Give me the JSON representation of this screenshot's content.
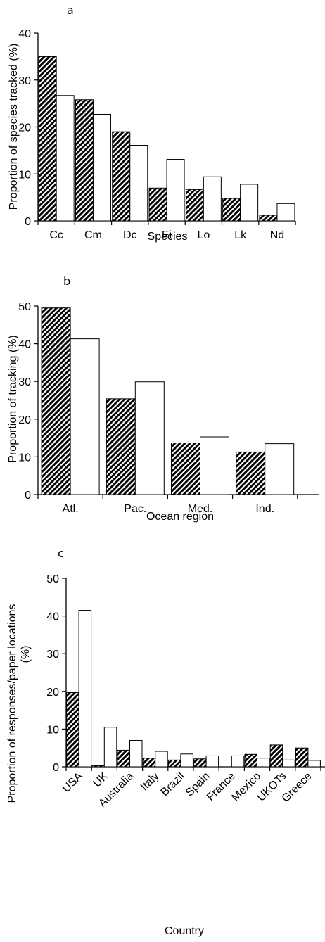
{
  "colors": {
    "ink": "#000000",
    "paper": "#ffffff"
  },
  "chart_data": [
    {
      "type": "bar",
      "panel_label": "a",
      "categories": [
        "Cc",
        "Cm",
        "Dc",
        "Ei",
        "Lo",
        "Lk",
        "Nd"
      ],
      "series": [
        {
          "pattern": "hatched",
          "values": [
            35,
            25.8,
            19,
            7,
            6.7,
            4.8,
            1.2
          ]
        },
        {
          "pattern": "open",
          "values": [
            26.7,
            22.7,
            16.1,
            13.1,
            9.4,
            7.8,
            3.7
          ]
        }
      ],
      "xlabel": "Species",
      "ylabel": "Proportion of species tracked  (%)",
      "ylim": [
        0,
        40
      ],
      "yticks": [
        0,
        10,
        20,
        30,
        40
      ],
      "tick_labels_rotated": false,
      "grid": false,
      "legend": "none"
    },
    {
      "type": "bar",
      "panel_label": "b",
      "categories": [
        "Atl.",
        "Pac.",
        "Med.",
        "Ind."
      ],
      "series": [
        {
          "pattern": "hatched",
          "values": [
            49.5,
            25.4,
            13.7,
            11.3
          ]
        },
        {
          "pattern": "open",
          "values": [
            41.3,
            29.9,
            15.3,
            13.5
          ]
        }
      ],
      "xlabel": "Ocean region",
      "ylabel": "Proportion of tracking (%)",
      "ylim": [
        0,
        50
      ],
      "yticks": [
        0,
        10,
        20,
        30,
        40,
        50
      ],
      "tick_labels_rotated": false,
      "grid": false,
      "legend": "none"
    },
    {
      "type": "bar",
      "panel_label": "c",
      "categories": [
        "USA",
        "UK",
        "Australia",
        "Italy",
        "Brazil",
        "Spain",
        "France",
        "Mexico",
        "UKOTs",
        "Greece"
      ],
      "series": [
        {
          "pattern": "hatched",
          "values": [
            19.7,
            0.3,
            4.4,
            2.3,
            1.8,
            2.1,
            0,
            3.3,
            5.8,
            5
          ]
        },
        {
          "pattern": "open",
          "values": [
            41.5,
            10.5,
            7,
            4.1,
            3.4,
            2.9,
            2.9,
            2.3,
            1.8,
            1.7
          ]
        }
      ],
      "xlabel": "Country",
      "ylabel_lines": [
        "Proportion of responses/paper locations",
        "(%)"
      ],
      "ylim": [
        0,
        50
      ],
      "yticks": [
        0,
        10,
        20,
        30,
        40,
        50
      ],
      "tick_labels_rotated": true,
      "grid": false,
      "legend": "none"
    }
  ]
}
